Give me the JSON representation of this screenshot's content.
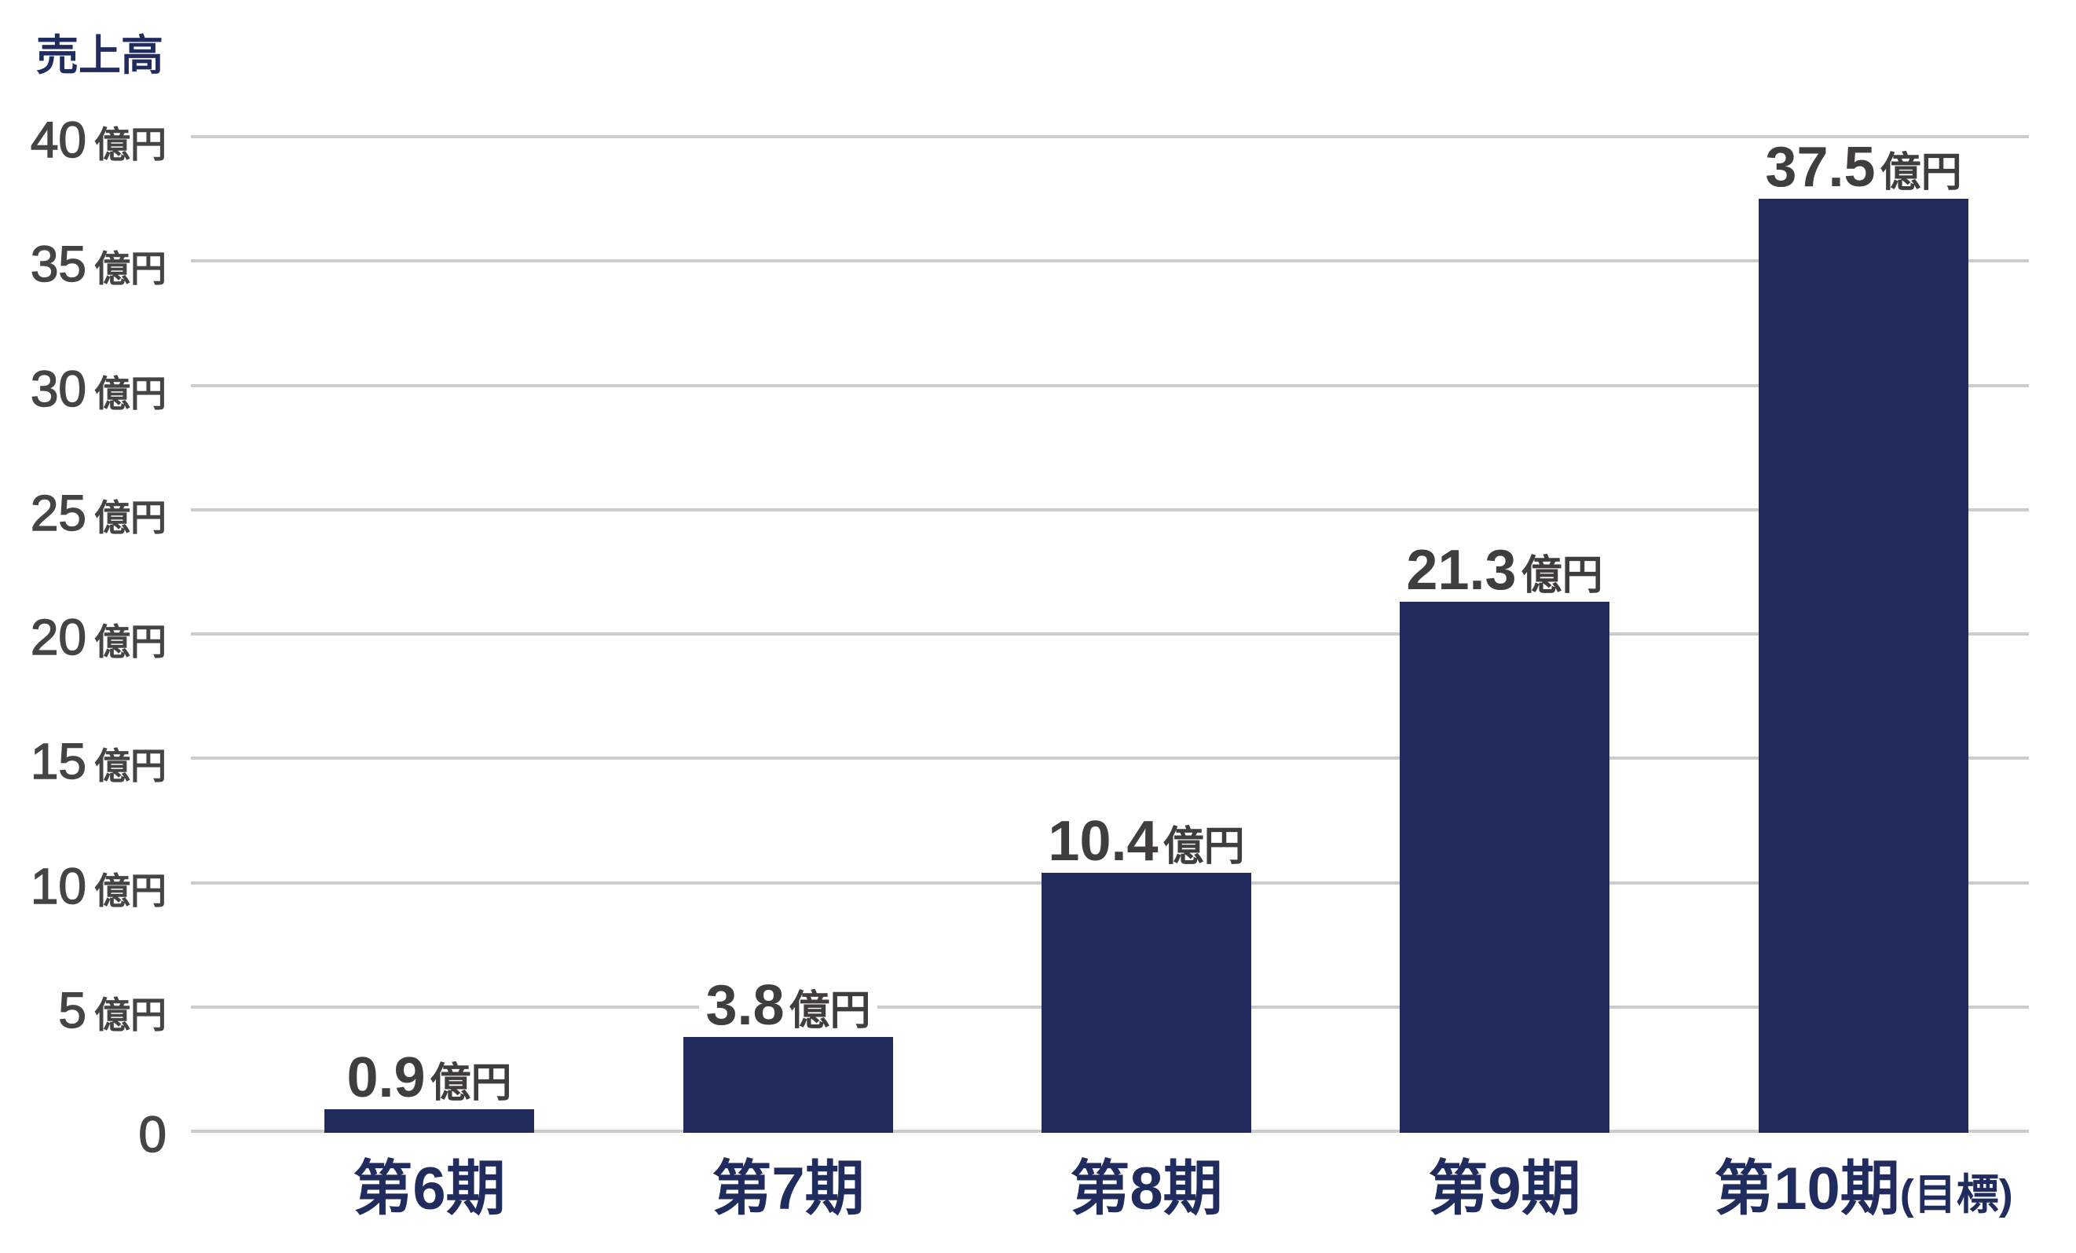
{
  "chart": {
    "title": "売上高",
    "y_axis": {
      "ticks": [
        {
          "value": 40,
          "num": "40",
          "unit": "億円"
        },
        {
          "value": 35,
          "num": "35",
          "unit": "億円"
        },
        {
          "value": 30,
          "num": "30",
          "unit": "億円"
        },
        {
          "value": 25,
          "num": "25",
          "unit": "億円"
        },
        {
          "value": 20,
          "num": "20",
          "unit": "億円"
        },
        {
          "value": 15,
          "num": "15",
          "unit": "億円"
        },
        {
          "value": 10,
          "num": "10",
          "unit": "億円"
        },
        {
          "value": 5,
          "num": "5",
          "unit": "億円"
        },
        {
          "value": 0,
          "num": "0",
          "unit": ""
        }
      ]
    },
    "bars": [
      {
        "category": "第6期",
        "category_note": "",
        "value_text": "0.9",
        "unit": "億円"
      },
      {
        "category": "第7期",
        "category_note": "",
        "value_text": "3.8",
        "unit": "億円"
      },
      {
        "category": "第8期",
        "category_note": "",
        "value_text": "10.4",
        "unit": "億円"
      },
      {
        "category": "第9期",
        "category_note": "",
        "value_text": "21.3",
        "unit": "億円"
      },
      {
        "category": "第10期",
        "category_note": "(目標)",
        "value_text": "37.5",
        "unit": "億円"
      }
    ]
  },
  "colors": {
    "bar": "#212b5c",
    "title_text": "#202b5e",
    "category_text": "#202b5e",
    "value_text": "#403e3c",
    "axis_text": "#454443",
    "gridline": "#cccccc",
    "background": "#ffffff"
  },
  "chart_data": {
    "type": "bar",
    "title": "売上高",
    "xlabel": "",
    "ylabel": "売上高",
    "unit": "億円",
    "categories": [
      "第6期",
      "第7期",
      "第8期",
      "第9期",
      "第10期(目標)"
    ],
    "values": [
      0.9,
      3.8,
      10.4,
      21.3,
      37.5
    ],
    "data_labels": [
      "0.9億円",
      "3.8億円",
      "10.4億円",
      "21.3億円",
      "37.5億円"
    ],
    "ylim": [
      0,
      40
    ],
    "yticks": [
      0,
      5,
      10,
      15,
      20,
      25,
      30,
      35,
      40
    ],
    "ytick_labels": [
      "0",
      "5億円",
      "10億円",
      "15億円",
      "20億円",
      "25億円",
      "30億円",
      "35億円",
      "40億円"
    ],
    "grid": true,
    "grid_axis": "y",
    "legend": null,
    "annotations": [
      "第10期 is a target (目標)"
    ]
  }
}
